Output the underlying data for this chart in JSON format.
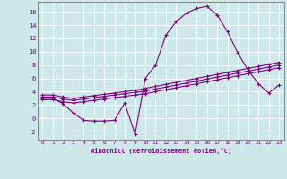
{
  "xlabel": "Windchill (Refroidissement éolien,°C)",
  "background_color": "#cde8e8",
  "grid_color": "#ffffff",
  "line_color": "#800080",
  "xlim": [
    -0.5,
    23.5
  ],
  "ylim": [
    -3.2,
    17.5
  ],
  "xticks": [
    0,
    1,
    2,
    3,
    4,
    5,
    6,
    7,
    8,
    9,
    10,
    11,
    12,
    13,
    14,
    15,
    16,
    17,
    18,
    19,
    20,
    21,
    22,
    23
  ],
  "yticks": [
    -2,
    0,
    2,
    4,
    6,
    8,
    10,
    12,
    14,
    16
  ],
  "series1_x": [
    0,
    1,
    2,
    3,
    4,
    5,
    6,
    7,
    8,
    9,
    10,
    11,
    12,
    13,
    14,
    15,
    16,
    17,
    18,
    19,
    20,
    21,
    22,
    23
  ],
  "series1_y": [
    3.0,
    3.0,
    2.2,
    0.8,
    -0.3,
    -0.4,
    -0.4,
    -0.3,
    2.3,
    -2.4,
    6.0,
    8.0,
    12.5,
    14.5,
    15.8,
    16.5,
    16.8,
    15.5,
    13.0,
    9.8,
    7.2,
    5.2,
    3.8,
    5.0
  ],
  "series2_x": [
    0,
    1,
    2,
    3,
    4,
    5,
    6,
    7,
    8,
    9,
    10,
    11,
    12,
    13,
    14,
    15,
    16,
    17,
    18,
    19,
    20,
    21,
    22,
    23
  ],
  "series2_y": [
    3.5,
    3.5,
    3.2,
    3.0,
    3.2,
    3.4,
    3.6,
    3.8,
    4.0,
    4.2,
    4.5,
    4.8,
    5.1,
    5.4,
    5.7,
    6.0,
    6.3,
    6.6,
    6.9,
    7.2,
    7.5,
    7.8,
    8.1,
    8.4
  ],
  "series3_x": [
    0,
    1,
    2,
    3,
    4,
    5,
    6,
    7,
    8,
    9,
    10,
    11,
    12,
    13,
    14,
    15,
    16,
    17,
    18,
    19,
    20,
    21,
    22,
    23
  ],
  "series3_y": [
    3.2,
    3.2,
    2.9,
    2.7,
    2.9,
    3.1,
    3.3,
    3.5,
    3.7,
    3.9,
    4.1,
    4.4,
    4.7,
    5.0,
    5.3,
    5.6,
    5.9,
    6.2,
    6.5,
    6.8,
    7.1,
    7.4,
    7.7,
    8.0
  ],
  "series4_x": [
    0,
    1,
    2,
    3,
    4,
    5,
    6,
    7,
    8,
    9,
    10,
    11,
    12,
    13,
    14,
    15,
    16,
    17,
    18,
    19,
    20,
    21,
    22,
    23
  ],
  "series4_y": [
    2.8,
    2.8,
    2.5,
    2.3,
    2.5,
    2.7,
    2.9,
    3.1,
    3.3,
    3.5,
    3.7,
    4.0,
    4.3,
    4.6,
    4.9,
    5.2,
    5.5,
    5.8,
    6.1,
    6.4,
    6.7,
    7.0,
    7.3,
    7.6
  ]
}
